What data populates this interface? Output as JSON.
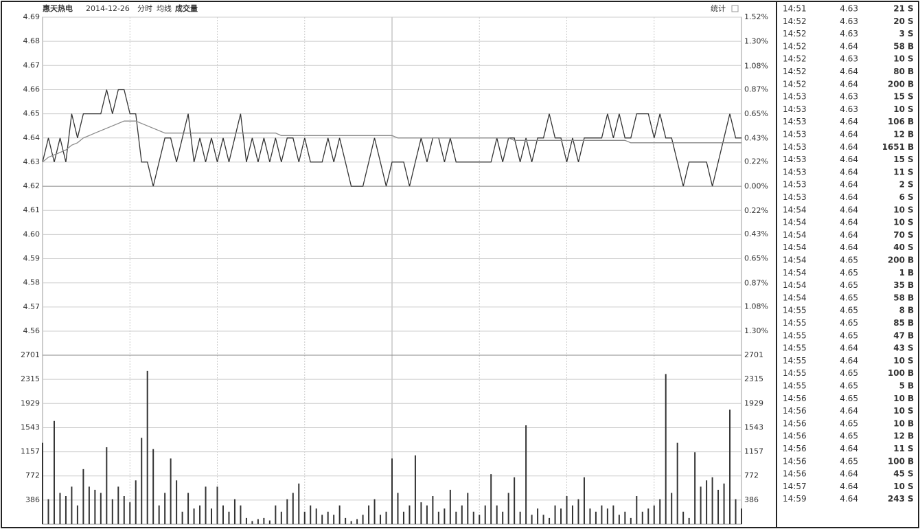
{
  "header": {
    "stock": "惠天热电",
    "date": "2014-12-26",
    "mode": "分时",
    "stats": "统计"
  },
  "chart_data": [
    {
      "type": "line",
      "ylim": [
        4.56,
        4.69
      ],
      "yticks": [
        4.69,
        4.68,
        4.67,
        4.66,
        4.65,
        4.64,
        4.63,
        4.62,
        4.61,
        {
          "value": 4.6,
          "label": "4.60"
        },
        4.59,
        4.58,
        4.57,
        4.56
      ],
      "y2lim": [
        -1.3,
        1.52
      ],
      "y2ticks": [
        {
          "value": 1.52,
          "label": "1.52%"
        },
        {
          "value": 1.3,
          "label": "1.30%"
        },
        {
          "value": 1.08,
          "label": "1.08%"
        },
        {
          "value": 0.87,
          "label": "0.87%"
        },
        {
          "value": 0.65,
          "label": "0.65%"
        },
        {
          "value": 0.43,
          "label": "0.43%"
        },
        {
          "value": 0.22,
          "label": "0.22%"
        },
        {
          "value": 0,
          "label": "0.00%"
        },
        {
          "value": -0.22,
          "label": "0.22%"
        },
        {
          "value": -0.43,
          "label": "0.43%"
        },
        {
          "value": -0.65,
          "label": "0.65%"
        },
        {
          "value": -0.87,
          "label": "0.87%"
        },
        {
          "value": -1.08,
          "label": "1.08%"
        },
        {
          "value": -1.3,
          "label": "1.30%"
        }
      ],
      "grid": true,
      "series": [
        {
          "color": "#333333",
          "values": [
            4.63,
            4.64,
            4.63,
            4.64,
            4.63,
            4.65,
            4.64,
            4.65,
            4.65,
            4.65,
            4.65,
            4.66,
            4.65,
            4.66,
            4.66,
            4.65,
            4.65,
            4.63,
            4.63,
            4.62,
            4.63,
            4.64,
            4.64,
            4.63,
            4.64,
            4.65,
            4.63,
            4.64,
            4.63,
            4.64,
            4.63,
            4.64,
            4.63,
            4.64,
            4.65,
            4.63,
            4.64,
            4.63,
            4.64,
            4.63,
            4.64,
            4.63,
            4.64,
            4.64,
            4.63,
            4.64,
            4.63,
            4.63,
            4.63,
            4.64,
            4.63,
            4.64,
            4.63,
            4.62,
            4.62,
            4.62,
            4.63,
            4.64,
            4.63,
            4.62,
            4.63,
            4.63,
            4.63,
            4.62,
            4.63,
            4.64,
            4.63,
            4.64,
            4.64,
            4.63,
            4.64,
            4.63,
            4.63,
            4.63,
            4.63,
            4.63,
            4.63,
            4.63,
            4.64,
            4.63,
            4.64,
            4.64,
            4.63,
            4.64,
            4.63,
            4.64,
            4.64,
            4.65,
            4.64,
            4.64,
            4.63,
            4.64,
            4.63,
            4.64,
            4.64,
            4.64,
            4.64,
            4.65,
            4.64,
            4.65,
            4.64,
            4.64,
            4.65,
            4.65,
            4.65,
            4.64,
            4.65,
            4.64,
            4.64,
            4.63,
            4.62,
            4.63,
            4.63,
            4.63,
            4.63,
            4.62,
            4.63,
            4.64,
            4.65,
            4.64,
            4.64
          ]
        },
        {
          "name": "均线",
          "color": "#8a8a8a",
          "values": [
            4.63,
            4.632,
            4.633,
            4.634,
            4.635,
            4.637,
            4.638,
            4.64,
            4.641,
            4.642,
            4.643,
            4.644,
            4.645,
            4.646,
            4.647,
            4.647,
            4.647,
            4.646,
            4.645,
            4.644,
            4.643,
            4.642,
            4.642,
            4.642,
            4.642,
            4.642,
            4.642,
            4.642,
            4.642,
            4.642,
            4.642,
            4.642,
            4.642,
            4.642,
            4.642,
            4.642,
            4.642,
            4.642,
            4.642,
            4.642,
            4.642,
            4.641,
            4.641,
            4.641,
            4.641,
            4.641,
            4.641,
            4.641,
            4.641,
            4.641,
            4.641,
            4.641,
            4.641,
            4.641,
            4.641,
            4.641,
            4.641,
            4.641,
            4.641,
            4.641,
            4.641,
            4.64,
            4.64,
            4.64,
            4.64,
            4.64,
            4.64,
            4.64,
            4.64,
            4.64,
            4.64,
            4.64,
            4.64,
            4.64,
            4.64,
            4.64,
            4.64,
            4.64,
            4.64,
            4.64,
            4.64,
            4.639,
            4.639,
            4.639,
            4.639,
            4.639,
            4.639,
            4.639,
            4.639,
            4.639,
            4.639,
            4.639,
            4.639,
            4.639,
            4.639,
            4.639,
            4.639,
            4.639,
            4.639,
            4.639,
            4.639,
            4.638,
            4.638,
            4.638,
            4.638,
            4.638,
            4.638,
            4.638,
            4.638,
            4.638,
            4.638,
            4.638,
            4.638,
            4.638,
            4.638,
            4.638,
            4.638,
            4.638,
            4.638,
            4.638,
            4.638
          ]
        }
      ]
    },
    {
      "type": "bar",
      "ylim": [
        0,
        2701
      ],
      "yticks": [
        2701,
        2315,
        1929,
        1543,
        1157,
        772,
        386
      ],
      "grid": true,
      "series": [
        {
          "name": "成交量",
          "color": "#333333",
          "values": [
            1300,
            400,
            1650,
            500,
            450,
            600,
            300,
            880,
            600,
            550,
            500,
            1230,
            400,
            600,
            450,
            350,
            700,
            1380,
            2450,
            1200,
            300,
            500,
            1050,
            700,
            200,
            500,
            250,
            300,
            600,
            250,
            600,
            300,
            200,
            400,
            300,
            100,
            50,
            80,
            100,
            60,
            300,
            200,
            400,
            500,
            650,
            200,
            300,
            250,
            150,
            200,
            150,
            300,
            100,
            50,
            80,
            150,
            300,
            400,
            150,
            200,
            1050,
            500,
            200,
            300,
            1100,
            350,
            300,
            450,
            200,
            250,
            550,
            200,
            300,
            500,
            200,
            150,
            300,
            800,
            300,
            200,
            500,
            750,
            200,
            1580,
            150,
            250,
            150,
            100,
            300,
            250,
            450,
            300,
            400,
            750,
            250,
            200,
            300,
            250,
            300,
            150,
            200,
            100,
            450,
            200,
            250,
            300,
            400,
            2400,
            500,
            1300,
            200,
            100,
            1150,
            600,
            700,
            750,
            550,
            650,
            1830,
            400,
            250
          ]
        }
      ]
    }
  ],
  "trades": [
    [
      "14:51",
      4.63,
      21,
      "S"
    ],
    [
      "14:52",
      4.63,
      20,
      "S"
    ],
    [
      "14:52",
      4.63,
      3,
      "S"
    ],
    [
      "14:52",
      4.64,
      58,
      "B"
    ],
    [
      "14:52",
      4.63,
      10,
      "S"
    ],
    [
      "14:52",
      4.64,
      80,
      "B"
    ],
    [
      "14:52",
      4.64,
      200,
      "B"
    ],
    [
      "14:53",
      4.63,
      15,
      "S"
    ],
    [
      "14:53",
      4.63,
      10,
      "S"
    ],
    [
      "14:53",
      4.64,
      106,
      "B"
    ],
    [
      "14:53",
      4.64,
      12,
      "B"
    ],
    [
      "14:53",
      4.64,
      1651,
      "B"
    ],
    [
      "14:53",
      4.64,
      15,
      "S"
    ],
    [
      "14:53",
      4.64,
      11,
      "S"
    ],
    [
      "14:53",
      4.64,
      2,
      "S"
    ],
    [
      "14:53",
      4.64,
      6,
      "S"
    ],
    [
      "14:54",
      4.64,
      10,
      "S"
    ],
    [
      "14:54",
      4.64,
      10,
      "S"
    ],
    [
      "14:54",
      4.64,
      70,
      "S"
    ],
    [
      "14:54",
      4.64,
      40,
      "S"
    ],
    [
      "14:54",
      4.65,
      200,
      "B"
    ],
    [
      "14:54",
      4.65,
      1,
      "B"
    ],
    [
      "14:54",
      4.65,
      35,
      "B"
    ],
    [
      "14:54",
      4.65,
      58,
      "B"
    ],
    [
      "14:55",
      4.65,
      8,
      "B"
    ],
    [
      "14:55",
      4.65,
      85,
      "B"
    ],
    [
      "14:55",
      4.65,
      47,
      "B"
    ],
    [
      "14:55",
      4.64,
      43,
      "S"
    ],
    [
      "14:55",
      4.64,
      10,
      "S"
    ],
    [
      "14:55",
      4.65,
      100,
      "B"
    ],
    [
      "14:55",
      4.65,
      5,
      "B"
    ],
    [
      "14:56",
      4.65,
      10,
      "B"
    ],
    [
      "14:56",
      4.64,
      10,
      "S"
    ],
    [
      "14:56",
      4.65,
      10,
      "B"
    ],
    [
      "14:56",
      4.65,
      12,
      "B"
    ],
    [
      "14:56",
      4.64,
      11,
      "S"
    ],
    [
      "14:56",
      4.65,
      100,
      "B"
    ],
    [
      "14:56",
      4.64,
      45,
      "S"
    ],
    [
      "14:57",
      4.64,
      10,
      "S"
    ],
    [
      "14:59",
      4.64,
      243,
      "S"
    ]
  ]
}
